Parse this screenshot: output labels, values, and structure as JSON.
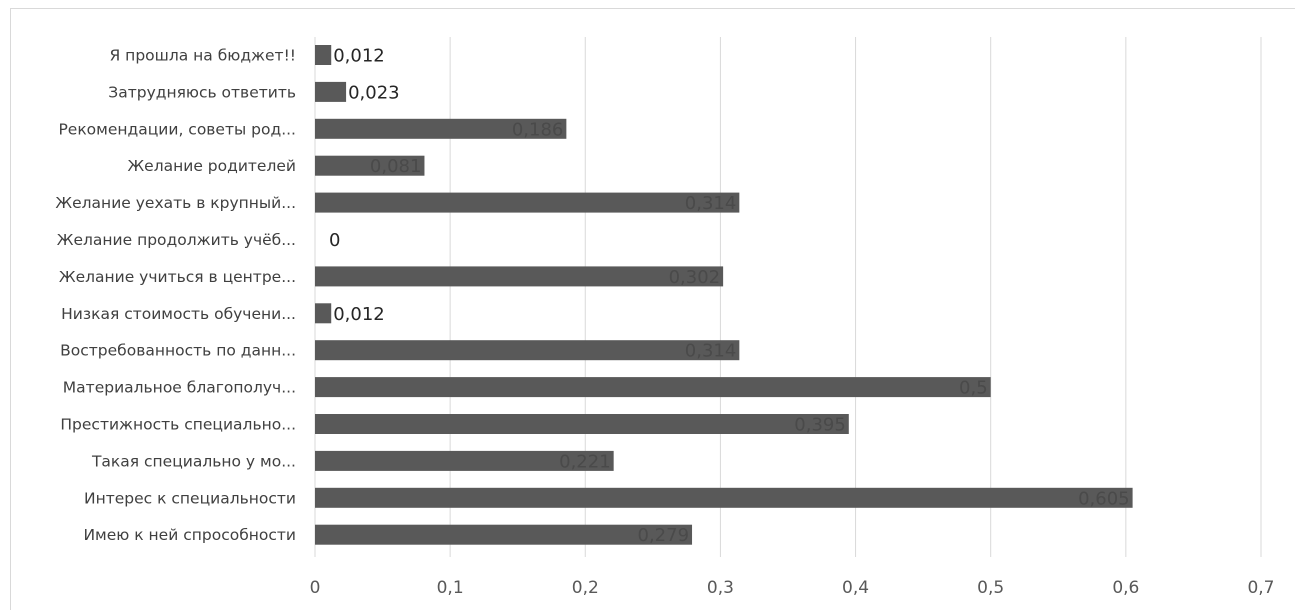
{
  "chart_data": {
    "type": "bar",
    "orientation": "horizontal",
    "title": "",
    "xlabel": "",
    "ylabel": "",
    "xlim": [
      0,
      0.7
    ],
    "ticks": [
      "0",
      "0,1",
      "0,2",
      "0,3",
      "0,4",
      "0,5",
      "0,6",
      "0,7"
    ],
    "grid": true,
    "legend": "none",
    "bar_color": "#595959",
    "categories": [
      "Я прошла на бюджет!!",
      "Затрудняюсь ответить",
      "Рекомендации, советы род...",
      "Желание родителей",
      "Желание уехать в крупный...",
      "Желание продолжить учёб...",
      "Желание учиться в центре...",
      "Низкая стоимость обучени...",
      "Востребованность по данн...",
      "Материальное благополуч...",
      "Престижность специально...",
      "Такая специально у мо...",
      "Интерес к специальности",
      "Имею к ней спрособности"
    ],
    "values": [
      0.012,
      0.023,
      0.186,
      0.081,
      0.314,
      0,
      0.302,
      0.012,
      0.314,
      0.5,
      0.395,
      0.221,
      0.605,
      0.279
    ],
    "value_labels": [
      "0,012",
      "0,023",
      "0,186",
      "0,081",
      "0,314",
      "0",
      "0,302",
      "0,012",
      "0,314",
      "0,5",
      "0,395",
      "0,221",
      "0,605",
      "0,279"
    ]
  }
}
